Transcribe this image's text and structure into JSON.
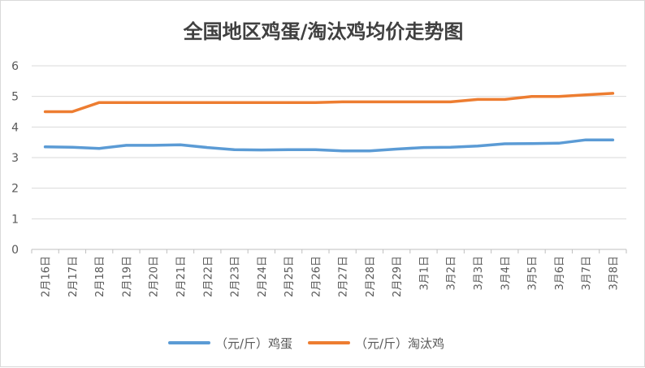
{
  "chart_data": {
    "type": "line",
    "title": "全国地区鸡蛋/淘汰鸡均价走势图",
    "categories": [
      "2月16日",
      "2月17日",
      "2月18日",
      "2月19日",
      "2月20日",
      "2月21日",
      "2月22日",
      "2月23日",
      "2月24日",
      "2月25日",
      "2月26日",
      "2月27日",
      "2月28日",
      "2月29日",
      "3月1日",
      "3月2日",
      "3月3日",
      "3月4日",
      "3月5日",
      "3月6日",
      "3月7日",
      "3月8日"
    ],
    "series": [
      {
        "name": "（元/斤）鸡蛋",
        "color": "#5b9bd5",
        "values": [
          3.35,
          3.34,
          3.3,
          3.4,
          3.4,
          3.42,
          3.33,
          3.26,
          3.25,
          3.26,
          3.26,
          3.22,
          3.22,
          3.28,
          3.33,
          3.34,
          3.38,
          3.45,
          3.46,
          3.47,
          3.58,
          3.58
        ]
      },
      {
        "name": "（元/斤）淘汰鸡",
        "color": "#ed7d31",
        "values": [
          4.5,
          4.5,
          4.8,
          4.8,
          4.8,
          4.8,
          4.8,
          4.8,
          4.8,
          4.8,
          4.8,
          4.82,
          4.82,
          4.82,
          4.82,
          4.82,
          4.9,
          4.9,
          5.0,
          5.0,
          5.05,
          5.1
        ]
      }
    ],
    "ylim": [
      0,
      6
    ],
    "yticks": [
      "0",
      "1",
      "2",
      "3",
      "4",
      "5",
      "6"
    ],
    "grid": true,
    "legend": "bottom"
  }
}
